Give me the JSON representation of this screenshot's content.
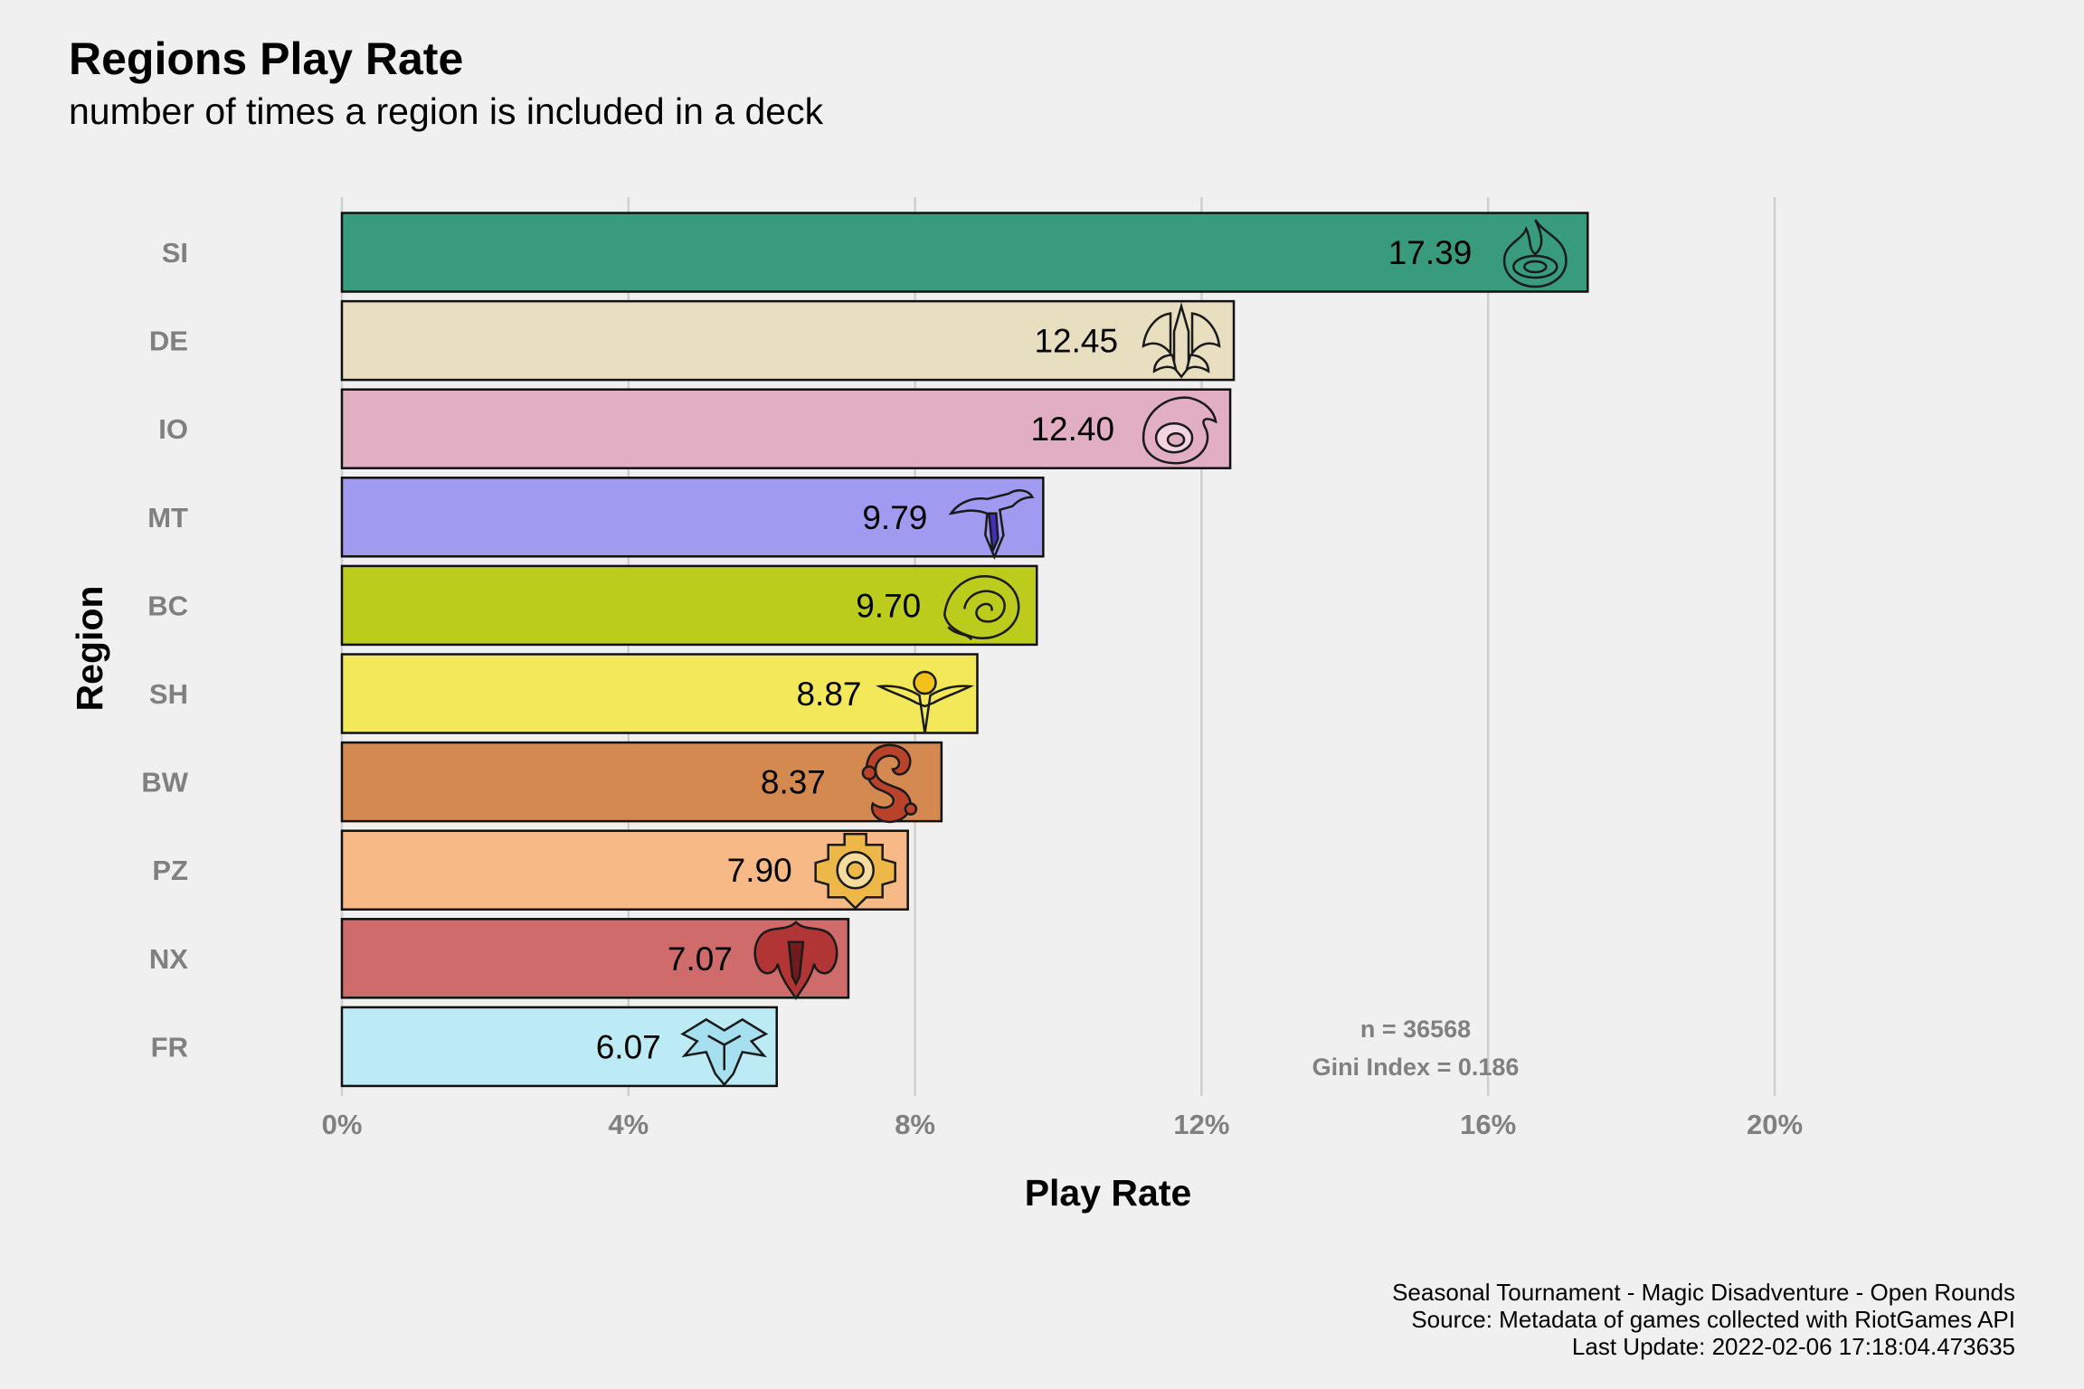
{
  "chart_data": {
    "type": "bar",
    "orientation": "horizontal",
    "title": "Regions Play Rate",
    "subtitle": "number of times a region is included in a deck",
    "xlabel": "Play Rate",
    "ylabel": "Region",
    "xlim": [
      0,
      20
    ],
    "x_ticks": [
      "0%",
      "4%",
      "8%",
      "12%",
      "16%",
      "20%"
    ],
    "x_tick_values": [
      0,
      4,
      8,
      12,
      16,
      20
    ],
    "grid": "vertical major lines",
    "categories": [
      "SI",
      "DE",
      "IO",
      "MT",
      "BC",
      "SH",
      "BW",
      "PZ",
      "NX",
      "FR"
    ],
    "values": [
      17.39,
      12.45,
      12.4,
      9.79,
      9.7,
      8.87,
      8.37,
      7.9,
      7.07,
      6.07
    ],
    "value_labels": [
      "17.39",
      "12.45",
      "12.40",
      "9.79",
      "9.70",
      "8.87",
      "8.37",
      "7.90",
      "7.07",
      "6.07"
    ],
    "bar_colors": [
      "#379b7c",
      "#e8dfc0",
      "#e1afc1",
      "#a09bf0",
      "#bbcc1c",
      "#f2e85a",
      "#d3894f",
      "#f7b985",
      "#cf6b6a",
      "#bdebf5"
    ],
    "region_icons": [
      "shadow-isles-icon",
      "demacia-icon",
      "ionia-icon",
      "mount-targon-icon",
      "bandle-city-icon",
      "shurima-icon",
      "bilgewater-icon",
      "piltover-zaun-icon",
      "noxus-icon",
      "freljord-icon"
    ],
    "annotations": [
      "n = 36568",
      "Gini Index = 0.186"
    ],
    "caption": [
      "Seasonal Tournament - Magic Disadventure - Open Rounds",
      "Source: Metadata of games collected with RiotGames API",
      "Last Update: 2022-02-06 17:18:04.473635"
    ]
  }
}
